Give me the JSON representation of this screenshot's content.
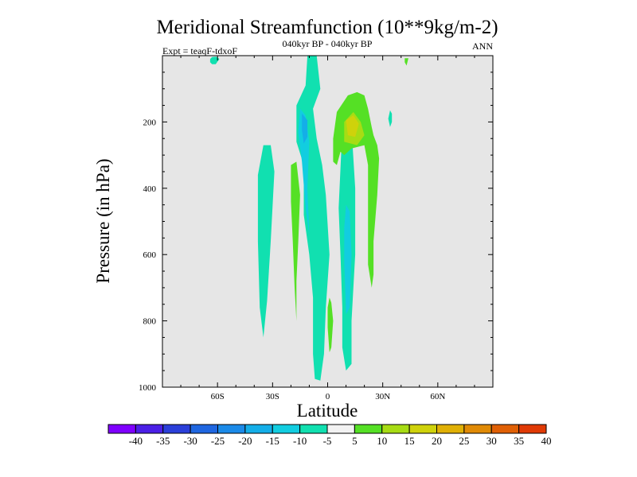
{
  "chart_data": {
    "type": "contour",
    "title": "Meridional Streamfunction (10**9kg/m-2)",
    "subtitle": "040kyr BP - 040kyr BP",
    "left_label": "Expt = teaqF-tdxoF",
    "right_label": "ANN",
    "xlabel": "Latitude",
    "ylabel": "Pressure (in hPa)",
    "xlim": [
      -90,
      90
    ],
    "ylim": [
      0,
      1000
    ],
    "y_reversed": true,
    "x_ticks": [
      {
        "value": -60,
        "label": "60S"
      },
      {
        "value": -30,
        "label": "30S"
      },
      {
        "value": 0,
        "label": "0"
      },
      {
        "value": 30,
        "label": "30N"
      },
      {
        "value": 60,
        "label": "60N"
      }
    ],
    "y_ticks": [
      {
        "value": 200,
        "label": "200"
      },
      {
        "value": 400,
        "label": "400"
      },
      {
        "value": 600,
        "label": "600"
      },
      {
        "value": 800,
        "label": "800"
      },
      {
        "value": 1000,
        "label": "1000"
      }
    ],
    "background_color": "#e6e6e6",
    "colorbar": {
      "levels": [
        -40,
        -35,
        -30,
        -25,
        -20,
        -15,
        -10,
        -5,
        5,
        10,
        15,
        20,
        25,
        30,
        35,
        40
      ],
      "colors": [
        "#7f00ff",
        "#4b1fe6",
        "#2b3fd9",
        "#1f66e0",
        "#1b8ae8",
        "#14aee8",
        "#12cde0",
        "#11e0b0",
        "#f2f2f2",
        "#55e025",
        "#a7dc14",
        "#cfd20b",
        "#e0b005",
        "#e08a05",
        "#e06005",
        "#e03a05"
      ]
    },
    "regions": [
      {
        "sign": "negative",
        "value": -10,
        "points": [
          [
            -61,
            3
          ],
          [
            -60,
            5
          ],
          [
            -59,
            10
          ],
          [
            -60,
            18
          ],
          [
            -61,
            26
          ],
          [
            -63,
            26
          ],
          [
            -64,
            20
          ],
          [
            -64,
            10
          ],
          [
            -63,
            4
          ]
        ]
      },
      {
        "sign": "negative",
        "value": -10,
        "points": [
          [
            -35,
            270
          ],
          [
            -31,
            270
          ],
          [
            -29,
            350
          ],
          [
            -31,
            560
          ],
          [
            -33,
            740
          ],
          [
            -35,
            850
          ],
          [
            -37,
            760
          ],
          [
            -38,
            560
          ],
          [
            -38,
            360
          ]
        ]
      },
      {
        "sign": "negative",
        "value": -10,
        "points": [
          [
            -11,
            0
          ],
          [
            -6,
            0
          ],
          [
            -4,
            100
          ],
          [
            -8,
            160
          ],
          [
            -6,
            250
          ],
          [
            -3,
            330
          ],
          [
            -1,
            420
          ],
          [
            1,
            600
          ],
          [
            -1,
            760
          ],
          [
            -2,
            900
          ],
          [
            -4,
            980
          ],
          [
            -7,
            975
          ],
          [
            -8,
            900
          ],
          [
            -8,
            730
          ],
          [
            -10,
            600
          ],
          [
            -13,
            480
          ],
          [
            -13,
            330
          ],
          [
            -17,
            260
          ],
          [
            -17,
            150
          ],
          [
            -12,
            90
          ]
        ]
      },
      {
        "sign": "negative",
        "value": -15,
        "points": [
          [
            -15,
            160
          ],
          [
            -12,
            180
          ],
          [
            -10,
            260
          ],
          [
            -11,
            400
          ],
          [
            -10,
            540
          ],
          [
            -12,
            460
          ],
          [
            -14,
            320
          ],
          [
            -16,
            230
          ]
        ]
      },
      {
        "sign": "negative",
        "value": -20,
        "points": [
          [
            -14,
            175
          ],
          [
            -11,
            195
          ],
          [
            -11,
            245
          ],
          [
            -13,
            265
          ],
          [
            -14,
            225
          ]
        ]
      },
      {
        "sign": "negative",
        "value": -10,
        "points": [
          [
            8,
            220
          ],
          [
            13,
            220
          ],
          [
            15,
            400
          ],
          [
            15,
            600
          ],
          [
            14,
            700
          ],
          [
            13,
            800
          ],
          [
            13,
            930
          ],
          [
            10,
            950
          ],
          [
            8,
            880
          ],
          [
            8,
            760
          ],
          [
            7,
            600
          ],
          [
            6,
            460
          ],
          [
            7,
            340
          ]
        ]
      },
      {
        "sign": "negative",
        "value": -15,
        "points": [
          [
            10,
            450
          ],
          [
            12,
            470
          ],
          [
            13,
            600
          ],
          [
            12,
            760
          ],
          [
            10,
            780
          ],
          [
            9,
            620
          ],
          [
            9,
            520
          ]
        ]
      },
      {
        "sign": "negative",
        "value": -10,
        "points": [
          [
            34,
            165
          ],
          [
            35,
            175
          ],
          [
            35,
            200
          ],
          [
            34,
            215
          ],
          [
            33,
            190
          ]
        ]
      },
      {
        "sign": "positive",
        "value": 5,
        "points": [
          [
            -20,
            330
          ],
          [
            -17,
            320
          ],
          [
            -15,
            420
          ],
          [
            -16,
            560
          ],
          [
            -17,
            680
          ],
          [
            -17,
            800
          ],
          [
            -18,
            700
          ],
          [
            -19,
            560
          ],
          [
            -20,
            440
          ]
        ]
      },
      {
        "sign": "positive",
        "value": 5,
        "points": [
          [
            11,
            120
          ],
          [
            16,
            110
          ],
          [
            20,
            120
          ],
          [
            22,
            160
          ],
          [
            24,
            215
          ],
          [
            25,
            240
          ],
          [
            27,
            270
          ],
          [
            28,
            310
          ],
          [
            27,
            420
          ],
          [
            25,
            560
          ],
          [
            25,
            660
          ],
          [
            24,
            700
          ],
          [
            22,
            630
          ],
          [
            22,
            500
          ],
          [
            22,
            330
          ],
          [
            20,
            270
          ],
          [
            13,
            280
          ],
          [
            9,
            300
          ],
          [
            7,
            290
          ],
          [
            5,
            330
          ],
          [
            3,
            320
          ],
          [
            3,
            250
          ],
          [
            5,
            170
          ]
        ]
      },
      {
        "sign": "positive",
        "value": 10,
        "points": [
          [
            9,
            200
          ],
          [
            14,
            170
          ],
          [
            18,
            200
          ],
          [
            20,
            240
          ],
          [
            16,
            270
          ],
          [
            9,
            260
          ]
        ]
      },
      {
        "sign": "positive",
        "value": 15,
        "points": [
          [
            10,
            195
          ],
          [
            14,
            180
          ],
          [
            17,
            205
          ],
          [
            15,
            245
          ],
          [
            11,
            240
          ]
        ]
      },
      {
        "sign": "positive",
        "value": 5,
        "points": [
          [
            42,
            8
          ],
          [
            44,
            8
          ],
          [
            43,
            30
          ],
          [
            42,
            20
          ]
        ]
      },
      {
        "sign": "positive",
        "value": 5,
        "points": [
          [
            1,
            730
          ],
          [
            2,
            745
          ],
          [
            3,
            800
          ],
          [
            2,
            880
          ],
          [
            1,
            895
          ],
          [
            0,
            820
          ],
          [
            0,
            760
          ]
        ]
      }
    ]
  }
}
